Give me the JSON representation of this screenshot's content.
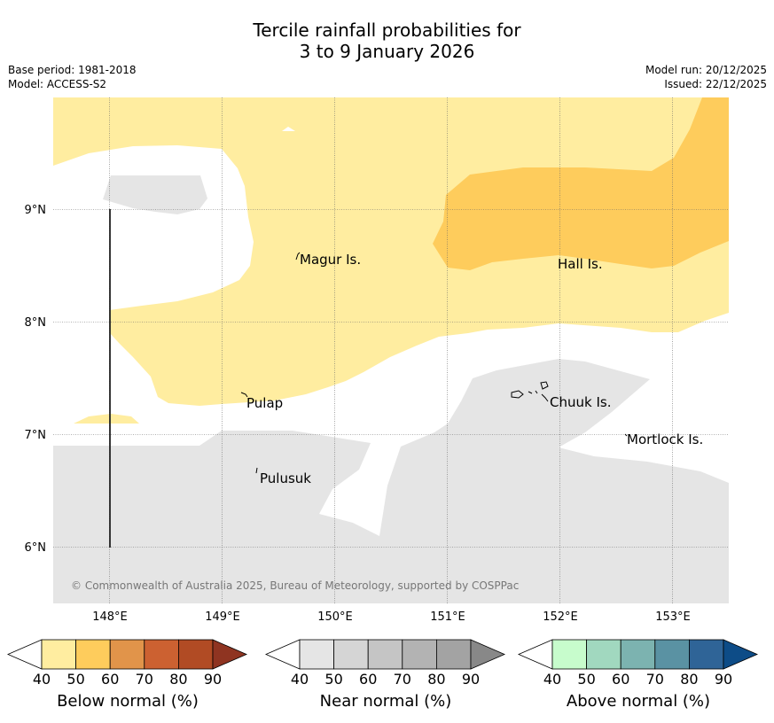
{
  "title": {
    "line1": "Tercile rainfall probabilities for",
    "line2": "3 to 9 January 2026"
  },
  "meta": {
    "base_period": "Base period: 1981-2018",
    "model": "Model: ACCESS-S2",
    "model_run": "Model run: 20/12/2025",
    "issued": "Issued: 22/12/2025"
  },
  "axes": {
    "x_ticks": [
      "148°E",
      "149°E",
      "150°E",
      "151°E",
      "152°E",
      "153°E"
    ],
    "y_ticks": [
      "9°N",
      "8°N",
      "7°N",
      "6°N"
    ]
  },
  "places": {
    "magur": "Magur Is.",
    "hall": "Hall Is.",
    "pulap": "Pulap",
    "chuuk": "Chuuk Is.",
    "mortlock": "Mortlock Is.",
    "pulusuk": "Pulusuk"
  },
  "copyright": "© Commonwealth of Australia 2025, Bureau of Meteorology, supported by COSPPac",
  "legends": {
    "below": {
      "label": "Below normal (%)",
      "ticks": [
        "40",
        "50",
        "60",
        "70",
        "80",
        "90"
      ],
      "colors": [
        "#ffeda0",
        "#fecc5c",
        "#e1944a",
        "#cc6131",
        "#b14b24",
        "#8f3421"
      ]
    },
    "near": {
      "label": "Near normal (%)",
      "ticks": [
        "40",
        "50",
        "60",
        "70",
        "80",
        "90"
      ],
      "colors": [
        "#e5e5e5",
        "#d5d5d5",
        "#c5c5c5",
        "#b3b3b3",
        "#a3a3a3",
        "#888888"
      ]
    },
    "above": {
      "label": "Above normal (%)",
      "ticks": [
        "40",
        "50",
        "60",
        "70",
        "80",
        "90"
      ],
      "colors": [
        "#c7fccc",
        "#a1d8bf",
        "#7cb3b0",
        "#5a92a3",
        "#2f6497",
        "#0d4c87"
      ]
    }
  },
  "colors": {
    "below_40_50": "#ffeda0",
    "below_50_60": "#fecc5c",
    "near_40_50": "#e5e5e5"
  }
}
